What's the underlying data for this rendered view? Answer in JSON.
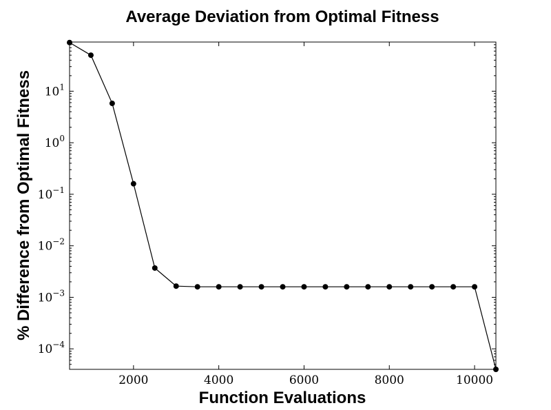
{
  "chart_data": {
    "type": "line",
    "title": "Average Deviation from Optimal Fitness",
    "xlabel": "Function Evaluations",
    "ylabel": "% Difference from Optimal Fitness",
    "xlim": [
      500,
      10500
    ],
    "ylim": [
      4e-05,
      90
    ],
    "yscale": "log",
    "grid": false,
    "line_color": "#000000",
    "marker": "circle",
    "x_ticks": [
      2000,
      4000,
      6000,
      8000,
      10000
    ],
    "x_tick_labels": [
      "2000",
      "4000",
      "6000",
      "8000",
      "10000"
    ],
    "y_ticks": [
      {
        "value": 10,
        "base": "10",
        "exp": "1"
      },
      {
        "value": 1,
        "base": "10",
        "exp": "0"
      },
      {
        "value": 0.1,
        "base": "10",
        "exp": "−1"
      },
      {
        "value": 0.01,
        "base": "10",
        "exp": "−2"
      },
      {
        "value": 0.001,
        "base": "10",
        "exp": "−3"
      },
      {
        "value": 0.0001,
        "base": "10",
        "exp": "−4"
      }
    ],
    "series": [
      {
        "x": [
          500,
          1000,
          1500,
          2000,
          2500,
          3000,
          3500,
          4000,
          4500,
          5000,
          5500,
          6000,
          6500,
          7000,
          7500,
          8000,
          8500,
          9000,
          9500,
          10000,
          10500
        ],
        "y": [
          88,
          50,
          5.8,
          0.16,
          0.0037,
          0.00165,
          0.0016,
          0.0016,
          0.0016,
          0.0016,
          0.0016,
          0.0016,
          0.0016,
          0.0016,
          0.0016,
          0.0016,
          0.0016,
          0.0016,
          0.0016,
          0.0016,
          4e-05
        ]
      }
    ]
  }
}
